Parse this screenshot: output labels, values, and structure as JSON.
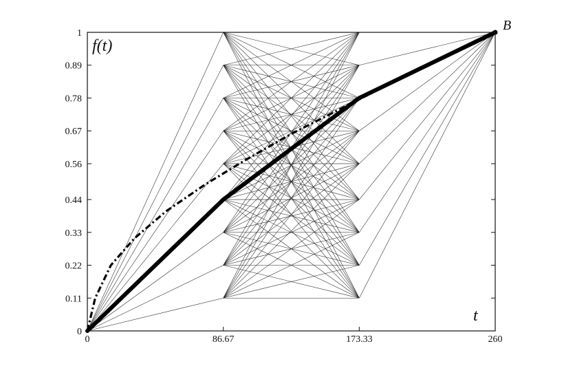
{
  "chart_data": {
    "type": "line",
    "title": "",
    "ylabel": "f(t)",
    "xlabel": "t",
    "point_label": "B",
    "xlim": [
      0,
      260
    ],
    "ylim": [
      0,
      1
    ],
    "x_ticks": [
      0,
      86.67,
      173.33,
      260
    ],
    "x_tick_labels": [
      "0",
      "86.67",
      "173.33",
      "260"
    ],
    "y_ticks": [
      0,
      0.11,
      0.22,
      0.33,
      0.44,
      0.56,
      0.67,
      0.78,
      0.89,
      1
    ],
    "y_tick_labels": [
      "0",
      "0.11",
      "0.22",
      "0.33",
      "0.44",
      "0.56",
      "0.67",
      "0.78",
      "0.89",
      "1"
    ],
    "grid": false,
    "network": {
      "stage_x": [
        0,
        86.67,
        173.33,
        260
      ],
      "node_levels": [
        0.11,
        0.22,
        0.33,
        0.44,
        0.56,
        0.67,
        0.78,
        0.89,
        1
      ]
    },
    "series": [
      {
        "style": "solid-thick",
        "x": [
          0,
          86.67,
          173.33,
          260
        ],
        "y": [
          0,
          0.44,
          0.78,
          1
        ]
      },
      {
        "style": "dash-dot",
        "x": [
          0,
          5,
          15,
          30,
          50,
          75,
          100,
          130,
          160,
          190,
          220,
          245,
          260
        ],
        "y": [
          0,
          0.11,
          0.22,
          0.31,
          0.4,
          0.49,
          0.57,
          0.66,
          0.74,
          0.82,
          0.9,
          0.96,
          1
        ]
      }
    ]
  }
}
